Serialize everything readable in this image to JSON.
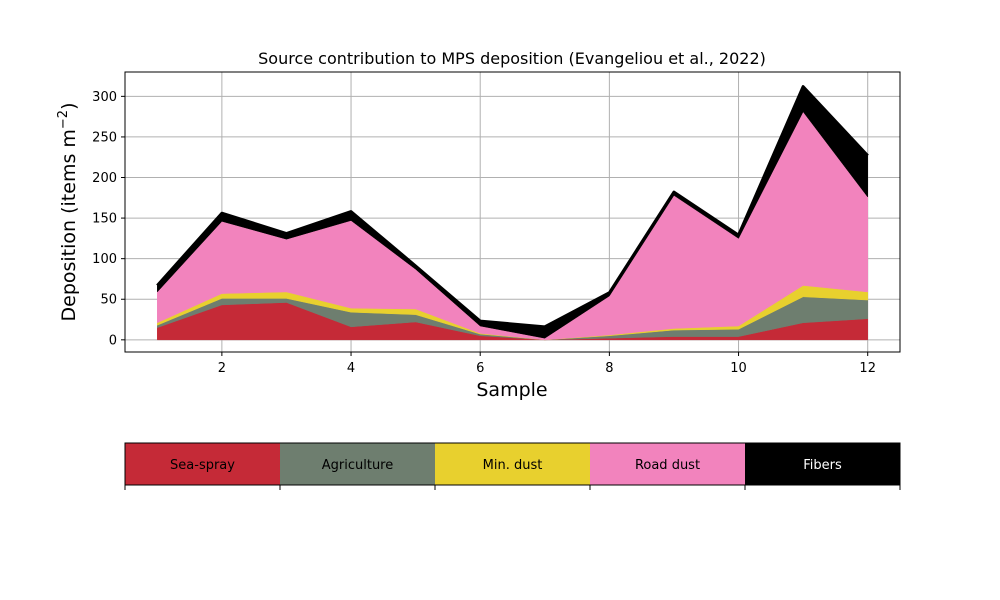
{
  "chart_data": {
    "type": "area",
    "stacked": true,
    "title": "Source contribution to MPS deposition (Evangeliou et al., 2022)",
    "xlabel": "Sample",
    "ylabel": "Deposition (items m",
    "ylabel_sup": "−2",
    "ylabel_close": ")",
    "x": [
      1,
      2,
      3,
      4,
      5,
      6,
      7,
      8,
      9,
      10,
      11,
      12
    ],
    "xlim": [
      0.5,
      12.5
    ],
    "ylim": [
      -15,
      330
    ],
    "xticks": [
      2,
      4,
      6,
      8,
      10,
      12
    ],
    "yticks": [
      0,
      50,
      100,
      150,
      200,
      250,
      300
    ],
    "grid": true,
    "series": [
      {
        "name": "Sea-spray",
        "color": "#c52a37",
        "values": [
          15,
          43,
          46,
          16,
          22,
          5,
          0,
          2,
          4,
          4,
          21,
          26
        ]
      },
      {
        "name": "Agriculture",
        "color": "#6e7e6f",
        "values": [
          3,
          8,
          5,
          18,
          9,
          2,
          0,
          3,
          8,
          9,
          32,
          23
        ]
      },
      {
        "name": "Min. dust",
        "color": "#e8d02e",
        "values": [
          3,
          6,
          8,
          5,
          7,
          1,
          0,
          1,
          2,
          4,
          14,
          10
        ]
      },
      {
        "name": "Road dust",
        "color": "#f283bd",
        "values": [
          38,
          89,
          65,
          108,
          49,
          9,
          2,
          48,
          164,
          108,
          214,
          117
        ]
      },
      {
        "name": "Fibers",
        "color": "#000000",
        "values": [
          8,
          10,
          7,
          11,
          4,
          6,
          14,
          4,
          4,
          4,
          31,
          51
        ]
      }
    ],
    "legend_position": "below"
  }
}
